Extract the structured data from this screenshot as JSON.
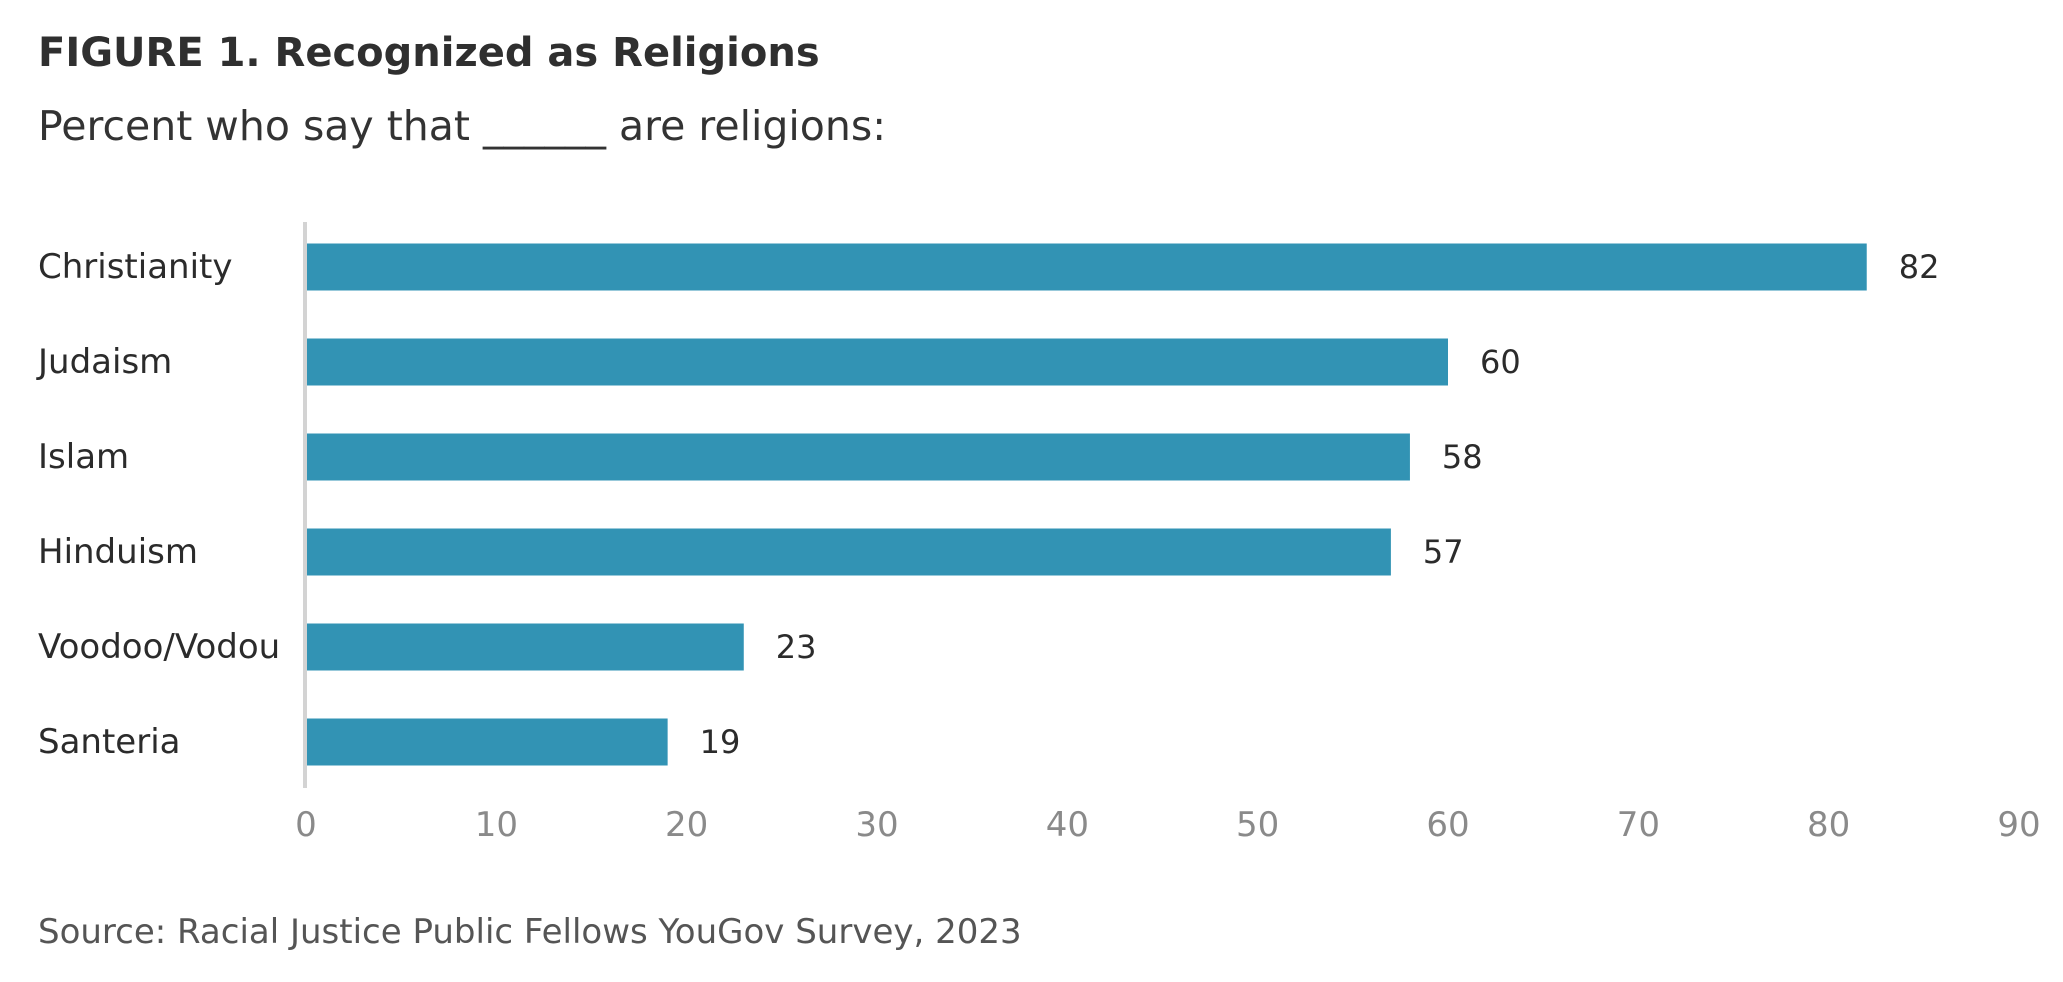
{
  "title": "FIGURE 1.  Recognized as Religions",
  "subtitle": "Percent who say that ______ are religions:",
  "source": "Source: Racial Justice Public Fellows YouGov Survey, 2023",
  "colors": {
    "bar": "#3293b4",
    "axis": "#d3d3d3"
  },
  "chart_data": {
    "type": "bar",
    "orientation": "horizontal",
    "categories": [
      "Christianity",
      "Judaism",
      "Islam",
      "Hinduism",
      "Voodoo/Vodou",
      "Santeria"
    ],
    "values": [
      82,
      60,
      58,
      57,
      23,
      19
    ],
    "xlim": [
      0,
      90
    ],
    "xticks": [
      0,
      10,
      20,
      30,
      40,
      50,
      60,
      70,
      80,
      90
    ],
    "grid": false,
    "legend": "none"
  }
}
